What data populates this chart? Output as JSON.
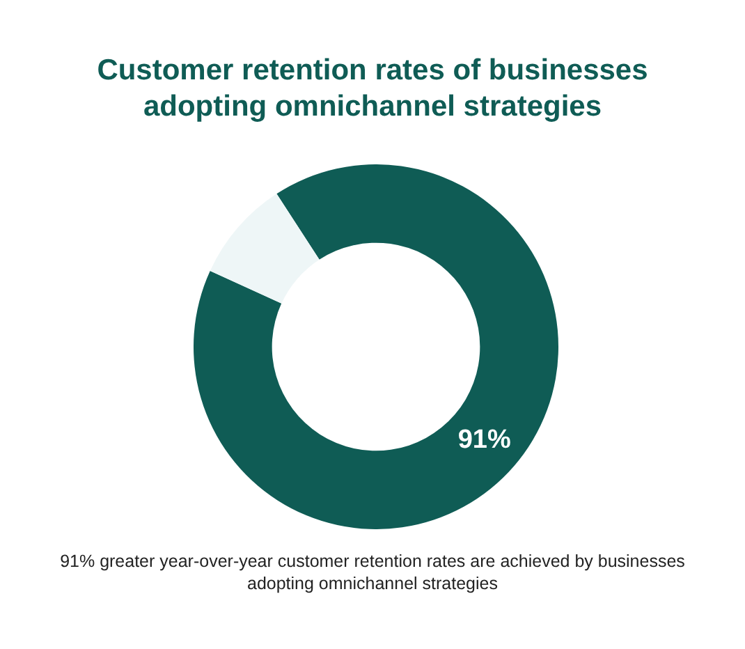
{
  "chart_data": {
    "type": "donut",
    "title": "Customer retention rates of businesses adopting omnichannel strategies",
    "categories": [
      null,
      null
    ],
    "values": [
      91,
      9
    ],
    "colors": [
      "#0f5c55",
      "#eef6f7"
    ],
    "value_labels": [
      "91%",
      null
    ],
    "annotations": [
      "91% greater year-over-year customer retention rates are achieved by businesses adopting omnichannel strategies"
    ],
    "legend": false
  }
}
